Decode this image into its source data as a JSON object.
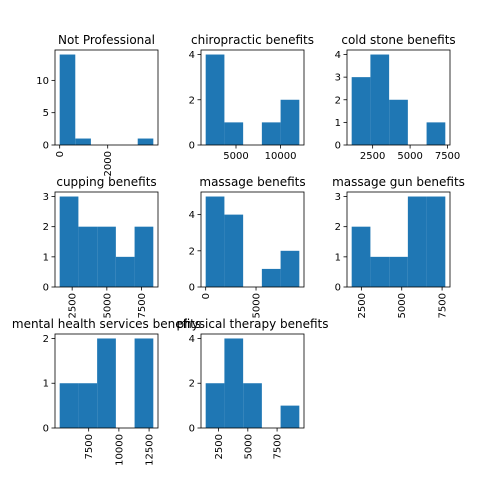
{
  "bar_color": "#1f77b4",
  "chart_data": [
    {
      "type": "bar",
      "title": "Not Professional",
      "bins": [
        [
          0,
          650,
          14
        ],
        [
          650,
          1300,
          1
        ],
        [
          1300,
          1950,
          0
        ],
        [
          1950,
          2600,
          0
        ],
        [
          2600,
          3250,
          0
        ],
        [
          3250,
          3900,
          1
        ]
      ],
      "xlim": [
        -195,
        4095
      ],
      "ylim": [
        0,
        14.7
      ],
      "xticks": [
        {
          "v": 0,
          "label": "0"
        },
        {
          "v": 2000,
          "label": "2000"
        }
      ],
      "yticks": [
        {
          "v": 0,
          "label": "0"
        },
        {
          "v": 5,
          "label": "5"
        },
        {
          "v": 10,
          "label": "10"
        }
      ],
      "xrot": true
    },
    {
      "type": "bar",
      "title": "chiropractic benefits",
      "bins": [
        [
          1600,
          3700,
          4
        ],
        [
          3700,
          5800,
          1
        ],
        [
          5800,
          7900,
          0
        ],
        [
          7900,
          10000,
          1
        ],
        [
          10000,
          12100,
          2
        ]
      ],
      "xlim": [
        1075,
        12625
      ],
      "ylim": [
        0,
        4.2
      ],
      "xticks": [
        {
          "v": 5000,
          "label": "5000"
        },
        {
          "v": 10000,
          "label": "10000"
        }
      ],
      "yticks": [
        {
          "v": 0,
          "label": "0"
        },
        {
          "v": 2,
          "label": "2"
        },
        {
          "v": 4,
          "label": "4"
        }
      ],
      "xrot": false
    },
    {
      "type": "bar",
      "title": "cold stone benefits",
      "bins": [
        [
          1100,
          2350,
          3
        ],
        [
          2350,
          3600,
          4
        ],
        [
          3600,
          4850,
          2
        ],
        [
          4850,
          6100,
          0
        ],
        [
          6100,
          7350,
          1
        ]
      ],
      "xlim": [
        788,
        7663
      ],
      "ylim": [
        0,
        4.2
      ],
      "xticks": [
        {
          "v": 2500,
          "label": "2500"
        },
        {
          "v": 5000,
          "label": "5000"
        },
        {
          "v": 7500,
          "label": "7500"
        }
      ],
      "yticks": [
        {
          "v": 0,
          "label": "0"
        },
        {
          "v": 1,
          "label": "1"
        },
        {
          "v": 2,
          "label": "2"
        },
        {
          "v": 3,
          "label": "3"
        },
        {
          "v": 4,
          "label": "4"
        }
      ],
      "xrot": false
    },
    {
      "type": "bar",
      "title": "cupping benefits",
      "bins": [
        [
          1600,
          2950,
          3
        ],
        [
          2950,
          4300,
          2
        ],
        [
          4300,
          5650,
          2
        ],
        [
          5650,
          7000,
          1
        ],
        [
          7000,
          8350,
          2
        ]
      ],
      "xlim": [
        1263,
        8688
      ],
      "ylim": [
        0,
        3.15
      ],
      "xticks": [
        {
          "v": 2500,
          "label": "2500"
        },
        {
          "v": 5000,
          "label": "5000"
        },
        {
          "v": 7500,
          "label": "7500"
        }
      ],
      "yticks": [
        {
          "v": 0,
          "label": "0"
        },
        {
          "v": 1,
          "label": "1"
        },
        {
          "v": 2,
          "label": "2"
        },
        {
          "v": 3,
          "label": "3"
        }
      ],
      "xrot": true
    },
    {
      "type": "bar",
      "title": "massage benefits",
      "bins": [
        [
          0,
          1860,
          5
        ],
        [
          1860,
          3720,
          4
        ],
        [
          3720,
          5580,
          0
        ],
        [
          5580,
          7440,
          1
        ],
        [
          7440,
          9300,
          2
        ]
      ],
      "xlim": [
        -465,
        9765
      ],
      "ylim": [
        0,
        5.25
      ],
      "xticks": [
        {
          "v": 0,
          "label": "0"
        },
        {
          "v": 5000,
          "label": "5000"
        }
      ],
      "yticks": [
        {
          "v": 0,
          "label": "0"
        },
        {
          "v": 2,
          "label": "2"
        },
        {
          "v": 4,
          "label": "4"
        }
      ],
      "xrot": true
    },
    {
      "type": "bar",
      "title": "massage gun benefits",
      "bins": [
        [
          1900,
          3060,
          2
        ],
        [
          3060,
          4220,
          1
        ],
        [
          4220,
          5380,
          1
        ],
        [
          5380,
          6540,
          3
        ],
        [
          6540,
          7700,
          3
        ]
      ],
      "xlim": [
        1610,
        7990
      ],
      "ylim": [
        0,
        3.15
      ],
      "xticks": [
        {
          "v": 2500,
          "label": "2500"
        },
        {
          "v": 5000,
          "label": "5000"
        },
        {
          "v": 7500,
          "label": "7500"
        }
      ],
      "yticks": [
        {
          "v": 0,
          "label": "0"
        },
        {
          "v": 1,
          "label": "1"
        },
        {
          "v": 2,
          "label": "2"
        },
        {
          "v": 3,
          "label": "3"
        }
      ],
      "xrot": true
    },
    {
      "type": "bar",
      "title": "mental health services benefits",
      "bins": [
        [
          5100,
          6650,
          1
        ],
        [
          6650,
          8200,
          1
        ],
        [
          8200,
          9750,
          2
        ],
        [
          9750,
          11300,
          0
        ],
        [
          11300,
          12850,
          2
        ]
      ],
      "xlim": [
        4712,
        13238
      ],
      "ylim": [
        0,
        2.1
      ],
      "xticks": [
        {
          "v": 7500,
          "label": "7500"
        },
        {
          "v": 10000,
          "label": "10000"
        },
        {
          "v": 12500,
          "label": "12500"
        }
      ],
      "yticks": [
        {
          "v": 0,
          "label": "0"
        },
        {
          "v": 1,
          "label": "1"
        },
        {
          "v": 2,
          "label": "2"
        }
      ],
      "xrot": true
    },
    {
      "type": "bar",
      "title": "physical therapy benefits",
      "bins": [
        [
          1400,
          3000,
          2
        ],
        [
          3000,
          4600,
          4
        ],
        [
          4600,
          6200,
          2
        ],
        [
          6200,
          7800,
          0
        ],
        [
          7800,
          9400,
          1
        ]
      ],
      "xlim": [
        1000,
        9800
      ],
      "ylim": [
        0,
        4.2
      ],
      "xticks": [
        {
          "v": 2500,
          "label": "2500"
        },
        {
          "v": 5000,
          "label": "5000"
        },
        {
          "v": 7500,
          "label": "7500"
        }
      ],
      "yticks": [
        {
          "v": 0,
          "label": "0"
        },
        {
          "v": 2,
          "label": "2"
        },
        {
          "v": 4,
          "label": "4"
        }
      ],
      "xrot": true
    }
  ]
}
